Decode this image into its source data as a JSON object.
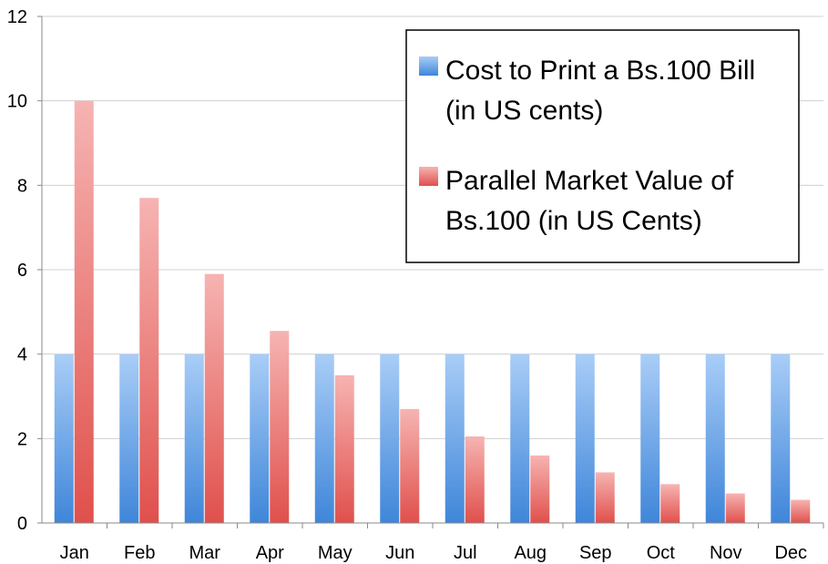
{
  "chart_data": {
    "type": "bar",
    "title": "",
    "xlabel": "",
    "ylabel": "",
    "ylim": [
      0,
      12
    ],
    "yticks": [
      "0",
      "2",
      "4",
      "6",
      "8",
      "10",
      "12"
    ],
    "grid": true,
    "legend_position": "top-right",
    "categories": [
      "Jan",
      "Feb",
      "Mar",
      "Apr",
      "May",
      "Jun",
      "Jul",
      "Aug",
      "Sep",
      "Oct",
      "Nov",
      "Dec"
    ],
    "series": [
      {
        "name": "Cost to Print a Bs.100 Bill (in US cents)",
        "legend_lines": [
          "Cost to Print a Bs.100 Bill",
          "(in US cents)"
        ],
        "color_top": "#a9cdf7",
        "color_bottom": "#3f86d9",
        "values": [
          4,
          4,
          4,
          4,
          4,
          4,
          4,
          4,
          4,
          4,
          4,
          4
        ]
      },
      {
        "name": "Parallel Market Value of Bs.100 (in US Cents)",
        "legend_lines": [
          "Parallel Market Value of",
          "Bs.100 (in US Cents)"
        ],
        "color_top": "#f6b4b2",
        "color_bottom": "#e0504c",
        "values": [
          10,
          7.7,
          5.9,
          4.55,
          3.5,
          2.7,
          2.05,
          1.6,
          1.2,
          0.92,
          0.7,
          0.55
        ]
      }
    ]
  }
}
